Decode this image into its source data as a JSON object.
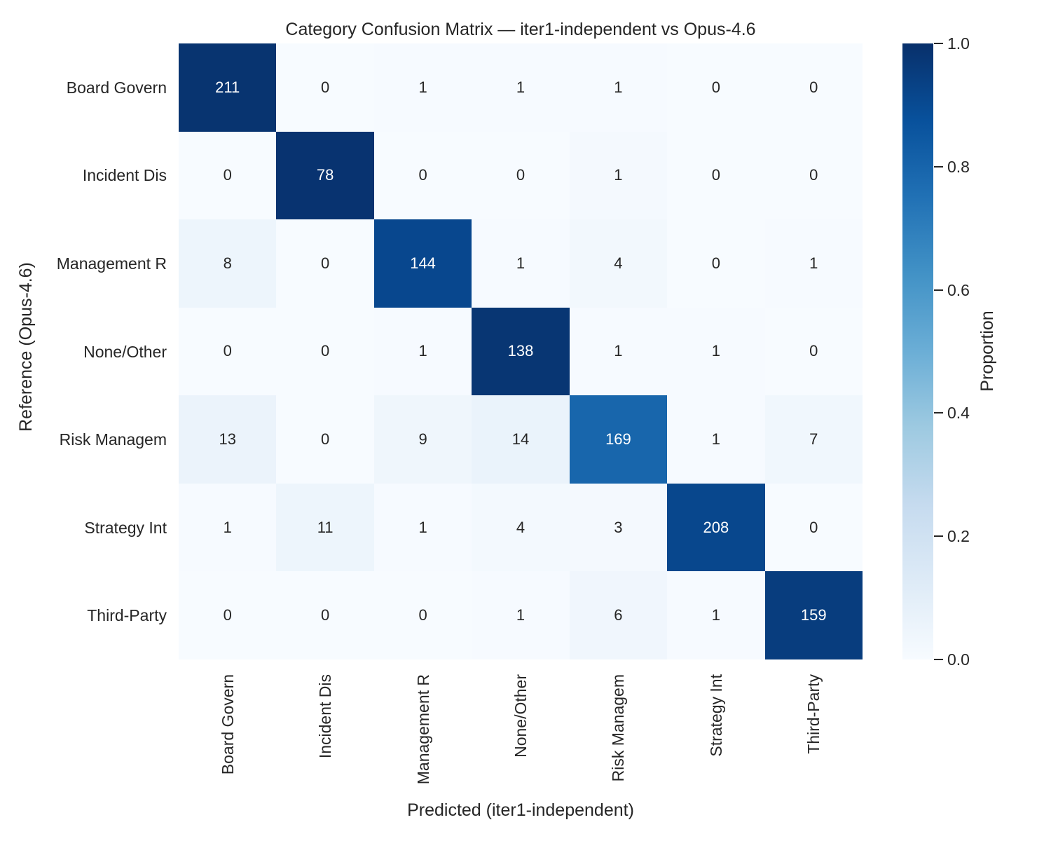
{
  "chart_data": {
    "type": "heatmap",
    "title": "Category Confusion Matrix — iter1-independent vs Opus-4.6",
    "xlabel": "Predicted (iter1-independent)",
    "ylabel": "Reference (Opus-4.6)",
    "x_categories": [
      "Board Govern",
      "Incident Dis",
      "Management R",
      "None/Other",
      "Risk Managem",
      "Strategy Int",
      "Third-Party"
    ],
    "y_categories": [
      "Board Govern",
      "Incident Dis",
      "Management R",
      "None/Other",
      "Risk Managem",
      "Strategy Int",
      "Third-Party"
    ],
    "matrix": [
      [
        211,
        0,
        1,
        1,
        1,
        0,
        0
      ],
      [
        0,
        78,
        0,
        0,
        1,
        0,
        0
      ],
      [
        8,
        0,
        144,
        1,
        4,
        0,
        1
      ],
      [
        0,
        0,
        1,
        138,
        1,
        1,
        0
      ],
      [
        13,
        0,
        9,
        14,
        169,
        1,
        7
      ],
      [
        1,
        11,
        1,
        4,
        3,
        208,
        0
      ],
      [
        0,
        0,
        0,
        1,
        6,
        1,
        159
      ]
    ],
    "normalization": "row-proportion",
    "colormap": "Blues",
    "colormap_stops": [
      "#f7fbff",
      "#deebf7",
      "#c6dbef",
      "#9ecae1",
      "#6baed6",
      "#4292c6",
      "#2171b5",
      "#08519c",
      "#08306b"
    ],
    "grid": false,
    "colorbar": {
      "label": "Proportion",
      "ticks": [
        "1.0",
        "0.8",
        "0.6",
        "0.4",
        "0.2",
        "0.0"
      ],
      "min": 0.0,
      "max": 1.0
    }
  },
  "colors": {
    "background": "#ffffff",
    "text": "#262626",
    "cell_text_light": "#ffffff",
    "cell_text_dark": "#262626",
    "diag_dark": "#083471",
    "zero_cell": "#f7fbff"
  }
}
